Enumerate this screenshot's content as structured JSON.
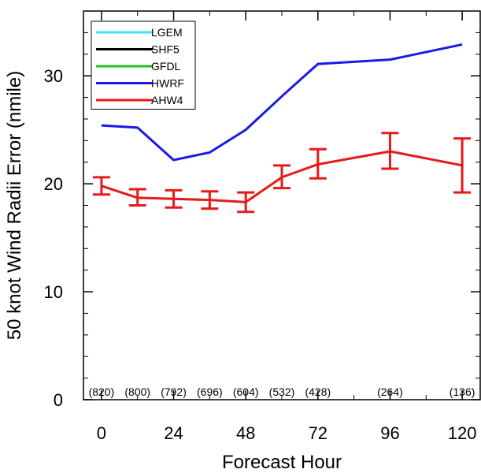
{
  "chart_data": {
    "type": "line",
    "xlabel": "Forecast Hour",
    "ylabel": "50 knot Wind Radii Error (nmile)",
    "xlim": [
      -6,
      126
    ],
    "ylim": [
      0,
      36
    ],
    "xticks": [
      0,
      24,
      48,
      72,
      96,
      120
    ],
    "yticks": [
      0,
      10,
      20,
      30
    ],
    "grid": false,
    "legend_position": "top-left",
    "counts": [
      {
        "x": 0,
        "label": "(820)"
      },
      {
        "x": 12,
        "label": "(800)"
      },
      {
        "x": 24,
        "label": "(792)"
      },
      {
        "x": 36,
        "label": "(696)"
      },
      {
        "x": 48,
        "label": "(604)"
      },
      {
        "x": 60,
        "label": "(532)"
      },
      {
        "x": 72,
        "label": "(428)"
      },
      {
        "x": 96,
        "label": "(264)"
      },
      {
        "x": 120,
        "label": "(136)"
      }
    ],
    "series": [
      {
        "name": "LGEM",
        "color": "#40e0f0",
        "x": [],
        "values": []
      },
      {
        "name": "SHF5",
        "color": "#000000",
        "x": [],
        "values": []
      },
      {
        "name": "GFDL",
        "color": "#20c020",
        "x": [],
        "values": []
      },
      {
        "name": "HWRF",
        "color": "#1a1ae6",
        "x": [
          0,
          12,
          24,
          36,
          48,
          60,
          72,
          96,
          120
        ],
        "values": [
          25.4,
          25.2,
          22.2,
          22.9,
          25.0,
          28.1,
          31.1,
          31.5,
          32.9
        ]
      },
      {
        "name": "AHW4",
        "color": "#e61a1a",
        "x": [
          0,
          12,
          24,
          36,
          48,
          60,
          72,
          96,
          120
        ],
        "values": [
          19.8,
          18.7,
          18.6,
          18.5,
          18.3,
          20.6,
          21.8,
          23.0,
          21.7
        ],
        "error_low": [
          19.0,
          18.0,
          17.8,
          17.7,
          17.4,
          19.6,
          20.5,
          21.4,
          19.2
        ],
        "error_high": [
          20.6,
          19.5,
          19.4,
          19.3,
          19.2,
          21.7,
          23.2,
          24.7,
          24.2
        ]
      }
    ]
  }
}
